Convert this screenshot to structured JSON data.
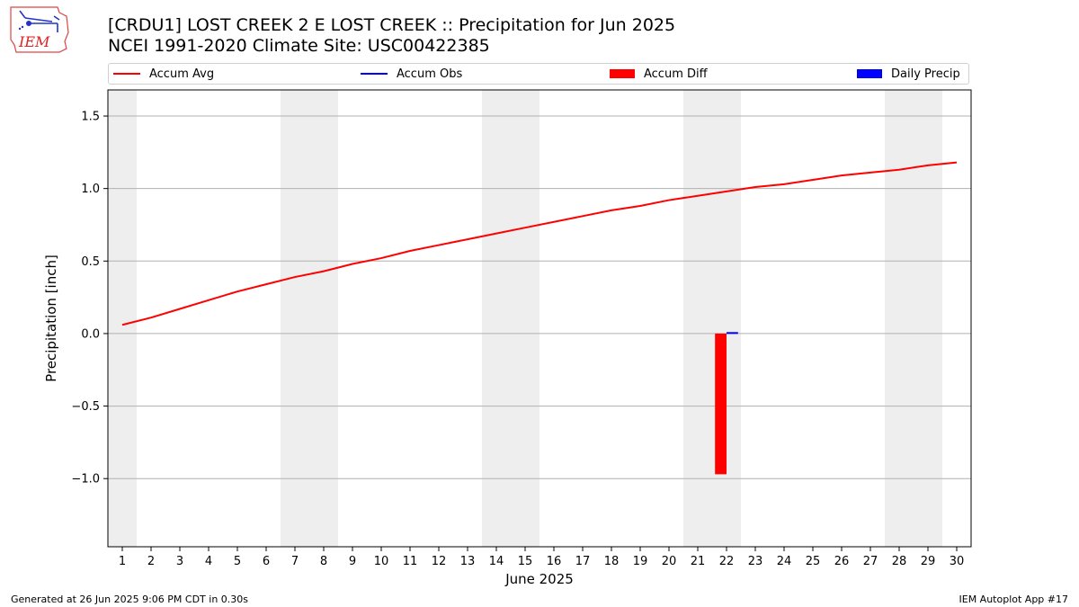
{
  "header": {
    "logo_text": "IEM",
    "title_line1": "[CRDU1] LOST CREEK 2 E LOST CREEK :: Precipitation for Jun 2025",
    "title_line2": "NCEI 1991-2020 Climate Site: USC00422385"
  },
  "legend": {
    "items": [
      {
        "label": "Accum Avg",
        "color": "#ff0000",
        "kind": "line"
      },
      {
        "label": "Accum Obs",
        "color": "#0000ff",
        "kind": "line"
      },
      {
        "label": "Accum Diff",
        "color": "#ff0000",
        "kind": "bar"
      },
      {
        "label": "Daily Precip",
        "color": "#0000ff",
        "kind": "bar"
      }
    ]
  },
  "chart_data": {
    "type": "line",
    "title": "[CRDU1] LOST CREEK 2 E LOST CREEK :: Precipitation for Jun 2025",
    "subtitle": "NCEI 1991-2020 Climate Site: USC00422385",
    "xlabel": "June 2025",
    "ylabel": "Precipitation [inch]",
    "xlim": [
      0.5,
      30.5
    ],
    "ylim": [
      -1.47,
      1.68
    ],
    "yticks": [
      -1.0,
      -0.5,
      0.0,
      0.5,
      1.0,
      1.5
    ],
    "ytick_labels": [
      "−1.0",
      "−0.5",
      "0.0",
      "0.5",
      "1.0",
      "1.5"
    ],
    "xticks": [
      1,
      2,
      3,
      4,
      5,
      6,
      7,
      8,
      9,
      10,
      11,
      12,
      13,
      14,
      15,
      16,
      17,
      18,
      19,
      20,
      21,
      22,
      23,
      24,
      25,
      26,
      27,
      28,
      29,
      30
    ],
    "grid": "y",
    "weekend_bands": [
      [
        0.5,
        1.5
      ],
      [
        6.5,
        8.5
      ],
      [
        13.5,
        15.5
      ],
      [
        20.5,
        22.5
      ],
      [
        27.5,
        29.5
      ]
    ],
    "weekend_band_color": "#eeeeee",
    "series": [
      {
        "name": "Accum Avg",
        "type": "line",
        "color": "#ff0000",
        "x": [
          1,
          2,
          3,
          4,
          5,
          6,
          7,
          8,
          9,
          10,
          11,
          12,
          13,
          14,
          15,
          16,
          17,
          18,
          19,
          20,
          21,
          22,
          23,
          24,
          25,
          26,
          27,
          28,
          29,
          30
        ],
        "values": [
          0.06,
          0.11,
          0.17,
          0.23,
          0.29,
          0.34,
          0.39,
          0.43,
          0.48,
          0.52,
          0.57,
          0.61,
          0.65,
          0.69,
          0.73,
          0.77,
          0.81,
          0.85,
          0.88,
          0.92,
          0.95,
          0.98,
          1.01,
          1.03,
          1.06,
          1.09,
          1.11,
          1.13,
          1.16,
          1.18
        ]
      },
      {
        "name": "Accum Diff",
        "type": "bar",
        "color": "#ff0000",
        "x": [
          22
        ],
        "values": [
          -0.97
        ]
      },
      {
        "name": "Daily Precip",
        "type": "bar",
        "color": "#0000ff",
        "x": [
          22
        ],
        "values": [
          0.01
        ]
      }
    ]
  },
  "footer": {
    "left": "Generated at 26 Jun 2025 9:06 PM CDT in 0.30s",
    "right": "IEM Autoplot App #17"
  }
}
